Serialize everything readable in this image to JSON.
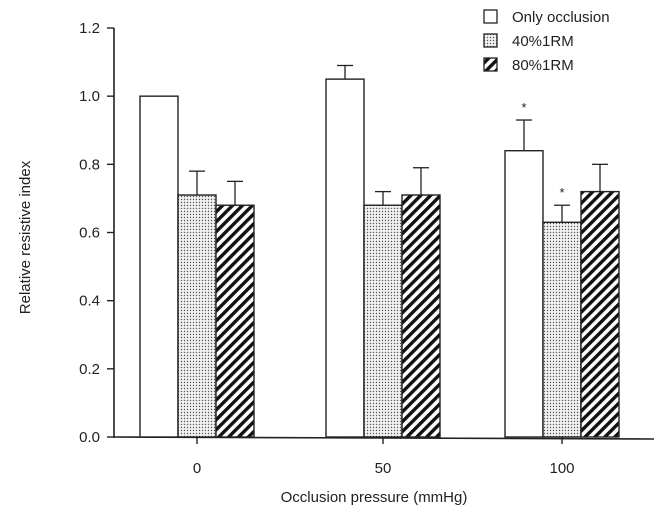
{
  "chart_data": {
    "type": "bar",
    "xlabel": "Occlusion pressure (mmHg)",
    "ylabel": "Relative resistive index",
    "categories": [
      "0",
      "50",
      "100"
    ],
    "ylim": [
      0,
      1.2
    ],
    "yticks": [
      "0.0",
      "0.2",
      "0.4",
      "0.6",
      "0.8",
      "1.0",
      "1.2"
    ],
    "legend_position": "top-right",
    "series": [
      {
        "name": "Only occlusion",
        "pattern": "none",
        "values": [
          1.0,
          1.05,
          0.84
        ],
        "errors": [
          0,
          0.04,
          0.09
        ],
        "significance": [
          "",
          "",
          "*"
        ]
      },
      {
        "name": "40%1RM",
        "pattern": "dots",
        "values": [
          0.71,
          0.68,
          0.63
        ],
        "errors": [
          0.07,
          0.04,
          0.05
        ],
        "significance": [
          "",
          "",
          "*"
        ]
      },
      {
        "name": "80%1RM",
        "pattern": "hatch",
        "values": [
          0.68,
          0.71,
          0.72
        ],
        "errors": [
          0.07,
          0.08,
          0.08
        ],
        "significance": [
          "",
          "",
          ""
        ]
      }
    ]
  }
}
